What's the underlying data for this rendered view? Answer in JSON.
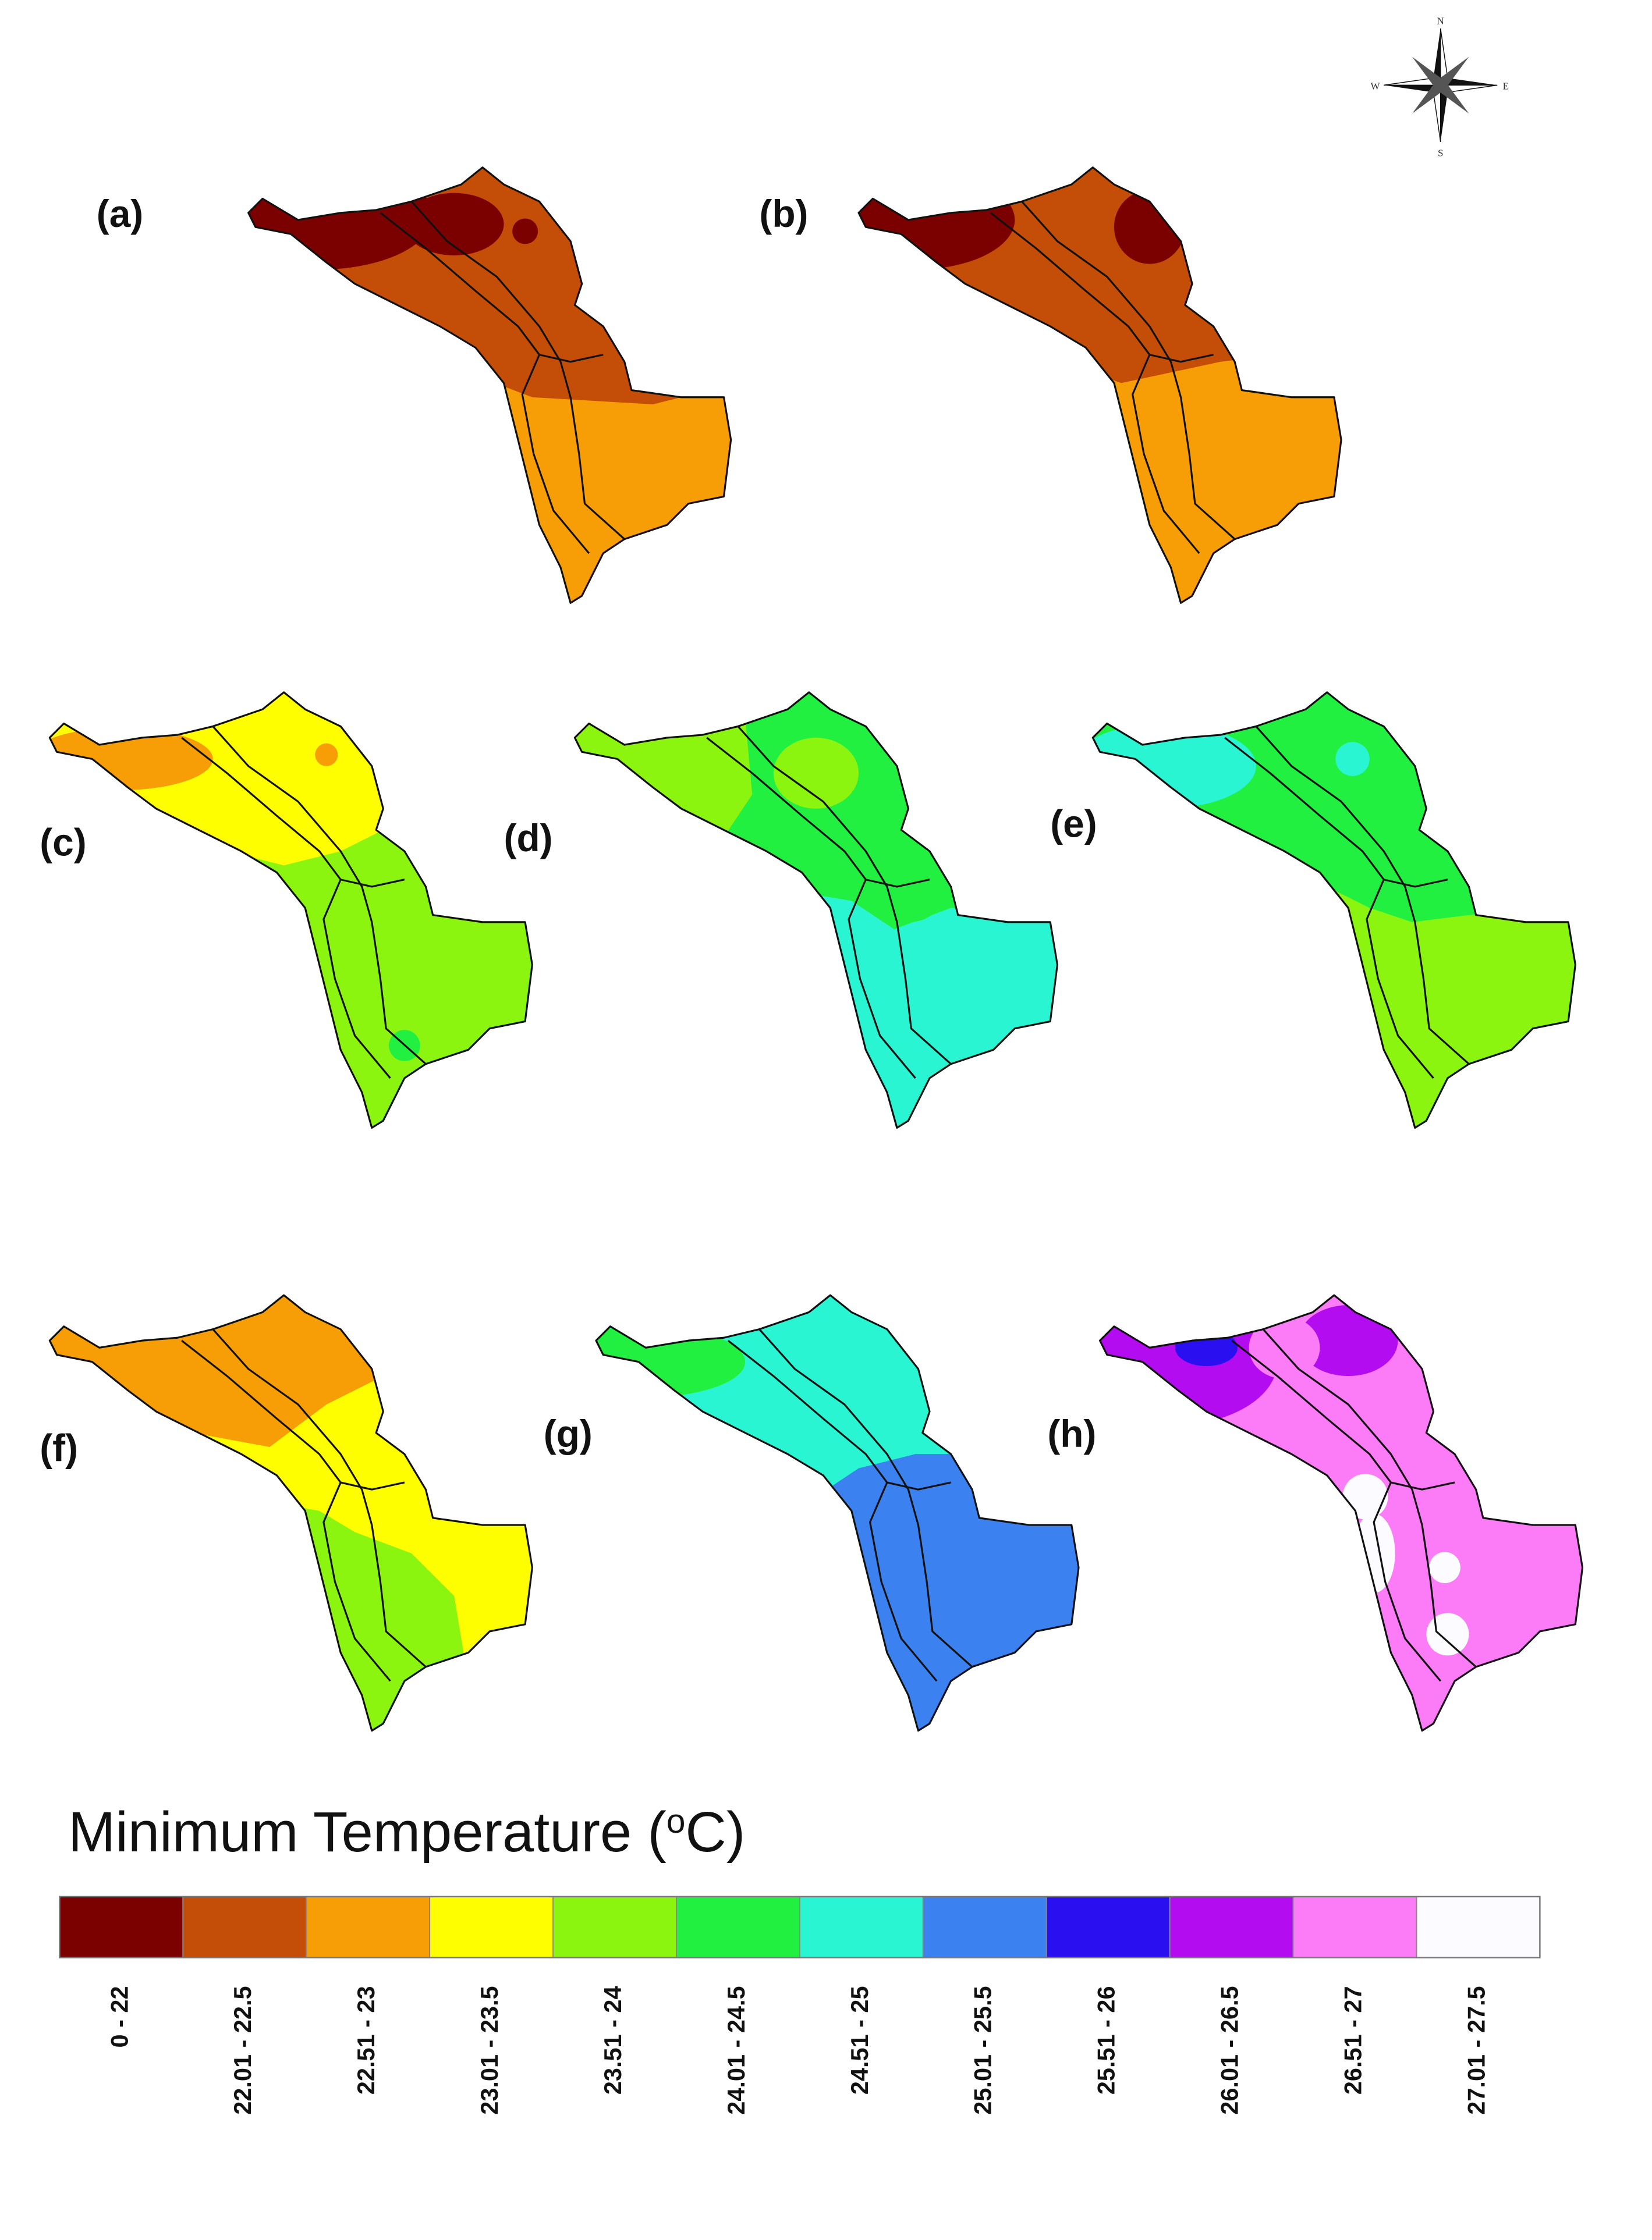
{
  "panels": [
    {
      "label": "(a)"
    },
    {
      "label": "(b)"
    },
    {
      "label": "(c)"
    },
    {
      "label": "(d)"
    },
    {
      "label": "(e)"
    },
    {
      "label": "(f)"
    },
    {
      "label": "(g)"
    },
    {
      "label": "(h)"
    }
  ],
  "compass": {
    "north": "N",
    "south": "S",
    "west": "W",
    "east": "E"
  },
  "legend": {
    "title": {
      "prefix": "Minimum Temperature (",
      "superscript": "o",
      "suffix": "C)"
    },
    "classes": [
      {
        "label": "0 - 22",
        "color": "#7b0000"
      },
      {
        "label": "22.01 - 22.5",
        "color": "#c44e08"
      },
      {
        "label": "22.51 - 23",
        "color": "#f79d06"
      },
      {
        "label": "23.01 - 23.5",
        "color": "#fefe00"
      },
      {
        "label": "23.51 - 24",
        "color": "#8cf510"
      },
      {
        "label": "24.01 - 24.5",
        "color": "#22f040"
      },
      {
        "label": "24.51 - 25",
        "color": "#2af5d2"
      },
      {
        "label": "25.01 - 25.5",
        "color": "#3b82f0"
      },
      {
        "label": "25.51 - 26",
        "color": "#2a10f0"
      },
      {
        "label": "26.01 - 26.5",
        "color": "#b40cf0"
      },
      {
        "label": "26.51 - 27",
        "color": "#fb7cf6"
      },
      {
        "label": "27.01 - 27.5",
        "color": "#fcfbff"
      }
    ]
  }
}
